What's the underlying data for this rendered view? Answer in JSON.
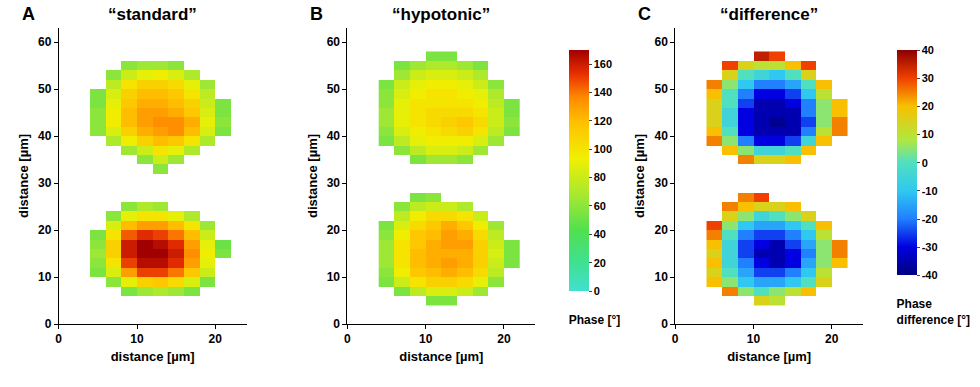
{
  "chart_data": [
    {
      "type": "heatmap",
      "panel": "A",
      "title": "“standard”",
      "x_label": "distance [µm]",
      "y_label": "distance [µm]",
      "xlim": [
        0,
        24
      ],
      "ylim": [
        0,
        63
      ],
      "xticks": [
        0,
        10,
        20
      ],
      "yticks": [
        0,
        10,
        20,
        30,
        40,
        50,
        60
      ],
      "zlim": [
        0,
        170
      ],
      "x": [
        5,
        7,
        9,
        11,
        13,
        15,
        17,
        19,
        21
      ],
      "y": [
        5,
        7,
        9,
        11,
        13,
        15,
        17,
        19,
        21,
        23,
        25,
        27,
        29,
        31,
        33,
        35,
        37,
        39,
        41,
        43,
        45,
        47,
        49,
        51,
        53,
        55,
        57
      ],
      "cells": [
        [
          null,
          null,
          null,
          null,
          null,
          null,
          null,
          null,
          null
        ],
        [
          null,
          null,
          55,
          65,
          70,
          65,
          55,
          null,
          null
        ],
        [
          null,
          60,
          90,
          110,
          115,
          105,
          85,
          55,
          null
        ],
        [
          55,
          85,
          130,
          150,
          150,
          140,
          115,
          80,
          null
        ],
        [
          60,
          100,
          150,
          165,
          165,
          155,
          130,
          90,
          null
        ],
        [
          65,
          110,
          160,
          170,
          170,
          160,
          135,
          95,
          55
        ],
        [
          60,
          110,
          160,
          170,
          165,
          155,
          130,
          90,
          50
        ],
        [
          55,
          100,
          145,
          155,
          150,
          140,
          120,
          80,
          null
        ],
        [
          null,
          85,
          120,
          130,
          130,
          120,
          100,
          65,
          null
        ],
        [
          null,
          60,
          90,
          100,
          100,
          90,
          70,
          null,
          null
        ],
        [
          null,
          null,
          60,
          70,
          65,
          null,
          null,
          null,
          null
        ],
        [
          null,
          null,
          null,
          null,
          null,
          null,
          null,
          null,
          null
        ],
        [
          null,
          null,
          null,
          null,
          null,
          null,
          null,
          null,
          null
        ],
        [
          null,
          null,
          null,
          null,
          null,
          null,
          null,
          null,
          null
        ],
        [
          null,
          null,
          null,
          null,
          60,
          null,
          null,
          null,
          null
        ],
        [
          null,
          null,
          null,
          60,
          80,
          65,
          null,
          null,
          null
        ],
        [
          null,
          null,
          65,
          80,
          100,
          90,
          70,
          null,
          null
        ],
        [
          null,
          70,
          95,
          110,
          120,
          115,
          100,
          70,
          null
        ],
        [
          60,
          85,
          110,
          125,
          130,
          135,
          120,
          85,
          55
        ],
        [
          60,
          95,
          120,
          130,
          135,
          135,
          125,
          90,
          60
        ],
        [
          60,
          95,
          120,
          130,
          130,
          125,
          115,
          85,
          55
        ],
        [
          55,
          90,
          115,
          125,
          125,
          120,
          110,
          80,
          55
        ],
        [
          55,
          85,
          110,
          120,
          120,
          115,
          100,
          75,
          null
        ],
        [
          null,
          75,
          100,
          110,
          110,
          105,
          90,
          65,
          null
        ],
        [
          null,
          60,
          80,
          90,
          95,
          85,
          70,
          null,
          null
        ],
        [
          null,
          null,
          60,
          65,
          65,
          60,
          null,
          null,
          null
        ],
        [
          null,
          null,
          null,
          null,
          null,
          null,
          null,
          null,
          null
        ]
      ]
    },
    {
      "type": "heatmap",
      "panel": "B",
      "title": "“hypotonic”",
      "x_label": "distance [µm]",
      "y_label": "distance [µm]",
      "xlim": [
        0,
        24
      ],
      "ylim": [
        0,
        63
      ],
      "xticks": [
        0,
        10,
        20
      ],
      "yticks": [
        0,
        10,
        20,
        30,
        40,
        50,
        60
      ],
      "zlim": [
        0,
        170
      ],
      "colorbar": {
        "title": "Phase [°]",
        "zticks": [
          0,
          20,
          40,
          60,
          80,
          100,
          120,
          140,
          160
        ]
      },
      "x": [
        5,
        7,
        9,
        11,
        13,
        15,
        17,
        19,
        21
      ],
      "y": [
        5,
        7,
        9,
        11,
        13,
        15,
        17,
        19,
        21,
        23,
        25,
        27,
        29,
        31,
        33,
        35,
        37,
        39,
        41,
        43,
        45,
        47,
        49,
        51,
        53,
        55,
        57
      ],
      "cells": [
        [
          null,
          null,
          null,
          55,
          55,
          null,
          null,
          null,
          null
        ],
        [
          null,
          55,
          75,
          85,
          85,
          80,
          65,
          null,
          null
        ],
        [
          55,
          80,
          100,
          110,
          110,
          105,
          90,
          60,
          null
        ],
        [
          60,
          95,
          115,
          120,
          125,
          120,
          105,
          75,
          null
        ],
        [
          65,
          100,
          120,
          125,
          130,
          125,
          110,
          80,
          55
        ],
        [
          65,
          100,
          120,
          125,
          125,
          125,
          110,
          85,
          55
        ],
        [
          65,
          100,
          115,
          125,
          130,
          130,
          110,
          80,
          55
        ],
        [
          60,
          95,
          115,
          120,
          130,
          125,
          105,
          75,
          null
        ],
        [
          55,
          85,
          105,
          115,
          125,
          115,
          95,
          65,
          null
        ],
        [
          null,
          75,
          95,
          105,
          105,
          100,
          80,
          null,
          null
        ],
        [
          null,
          60,
          75,
          80,
          80,
          70,
          null,
          null,
          null
        ],
        [
          null,
          null,
          55,
          60,
          null,
          null,
          null,
          null,
          null
        ],
        [
          null,
          null,
          null,
          null,
          null,
          null,
          null,
          null,
          null
        ],
        [
          null,
          null,
          null,
          null,
          null,
          null,
          null,
          null,
          null
        ],
        [
          null,
          null,
          null,
          null,
          null,
          null,
          null,
          null,
          null
        ],
        [
          null,
          null,
          55,
          65,
          65,
          60,
          null,
          null,
          null
        ],
        [
          null,
          60,
          75,
          85,
          85,
          80,
          65,
          null,
          null
        ],
        [
          55,
          75,
          90,
          95,
          95,
          95,
          85,
          65,
          null
        ],
        [
          60,
          85,
          95,
          100,
          105,
          110,
          100,
          75,
          55
        ],
        [
          65,
          90,
          100,
          105,
          110,
          115,
          105,
          80,
          60
        ],
        [
          65,
          90,
          100,
          105,
          105,
          105,
          100,
          80,
          55
        ],
        [
          60,
          90,
          100,
          100,
          100,
          100,
          95,
          75,
          55
        ],
        [
          60,
          85,
          95,
          100,
          100,
          95,
          90,
          70,
          null
        ],
        [
          55,
          80,
          90,
          95,
          95,
          90,
          80,
          60,
          null
        ],
        [
          null,
          65,
          80,
          85,
          85,
          80,
          70,
          null,
          null
        ],
        [
          null,
          55,
          65,
          70,
          70,
          65,
          55,
          null,
          null
        ],
        [
          null,
          null,
          null,
          55,
          55,
          null,
          null,
          null,
          null
        ]
      ]
    },
    {
      "type": "heatmap",
      "panel": "C",
      "title": "“difference”",
      "x_label": "distance [µm]",
      "y_label": "distance [µm]",
      "xlim": [
        0,
        24
      ],
      "ylim": [
        0,
        63
      ],
      "xticks": [
        0,
        10,
        20
      ],
      "yticks": [
        0,
        10,
        20,
        30,
        40,
        50,
        60
      ],
      "zlim": [
        -40,
        40
      ],
      "colorbar": {
        "title": "Phase difference [°]",
        "zticks": [
          -40,
          -30,
          -20,
          -10,
          0,
          10,
          20,
          30,
          40
        ]
      },
      "x": [
        5,
        7,
        9,
        11,
        13,
        15,
        17,
        19,
        21
      ],
      "y": [
        5,
        7,
        9,
        11,
        13,
        15,
        17,
        19,
        21,
        23,
        25,
        27,
        29,
        31,
        33,
        35,
        37,
        39,
        41,
        43,
        45,
        47,
        49,
        51,
        53,
        55,
        57
      ],
      "cells": [
        [
          null,
          null,
          null,
          15,
          10,
          null,
          null,
          null,
          null
        ],
        [
          null,
          25,
          5,
          0,
          5,
          10,
          20,
          null,
          null
        ],
        [
          20,
          5,
          -10,
          -15,
          -15,
          -10,
          0,
          15,
          null
        ],
        [
          15,
          0,
          -15,
          -25,
          -25,
          -20,
          -10,
          10,
          null
        ],
        [
          20,
          -5,
          -20,
          -30,
          -35,
          -30,
          -15,
          5,
          20
        ],
        [
          15,
          -5,
          -25,
          -35,
          -35,
          -30,
          -20,
          5,
          25
        ],
        [
          20,
          -5,
          -25,
          -30,
          -35,
          -25,
          -15,
          5,
          25
        ],
        [
          25,
          0,
          -20,
          -25,
          -25,
          -20,
          -10,
          10,
          null
        ],
        [
          30,
          5,
          -10,
          -15,
          -15,
          -10,
          0,
          20,
          null
        ],
        [
          null,
          15,
          5,
          -5,
          0,
          5,
          15,
          null,
          null
        ],
        [
          null,
          25,
          20,
          15,
          15,
          20,
          null,
          null,
          null
        ],
        [
          null,
          null,
          25,
          30,
          null,
          null,
          null,
          null,
          null
        ],
        [
          null,
          null,
          null,
          null,
          null,
          null,
          null,
          null,
          null
        ],
        [
          null,
          null,
          null,
          null,
          null,
          null,
          null,
          null,
          null
        ],
        [
          null,
          null,
          null,
          null,
          null,
          null,
          null,
          null,
          null
        ],
        [
          null,
          null,
          25,
          15,
          15,
          20,
          null,
          null,
          null
        ],
        [
          null,
          20,
          5,
          -5,
          -5,
          0,
          20,
          null,
          null
        ],
        [
          25,
          5,
          -20,
          -30,
          -30,
          -25,
          -5,
          20,
          null
        ],
        [
          20,
          0,
          -30,
          -35,
          -35,
          -35,
          -20,
          10,
          25
        ],
        [
          15,
          -5,
          -30,
          -35,
          -38,
          -35,
          -25,
          5,
          25
        ],
        [
          15,
          -5,
          -30,
          -35,
          -35,
          -35,
          -20,
          5,
          20
        ],
        [
          15,
          0,
          -25,
          -35,
          -35,
          -30,
          -20,
          5,
          20
        ],
        [
          20,
          0,
          -20,
          -30,
          -30,
          -25,
          -10,
          10,
          null
        ],
        [
          25,
          5,
          -10,
          -20,
          -20,
          -15,
          0,
          20,
          null
        ],
        [
          null,
          15,
          0,
          -5,
          -10,
          0,
          15,
          null,
          null
        ],
        [
          null,
          30,
          15,
          10,
          10,
          20,
          30,
          null,
          null
        ],
        [
          null,
          null,
          null,
          35,
          30,
          null,
          null,
          null,
          null
        ]
      ]
    }
  ]
}
